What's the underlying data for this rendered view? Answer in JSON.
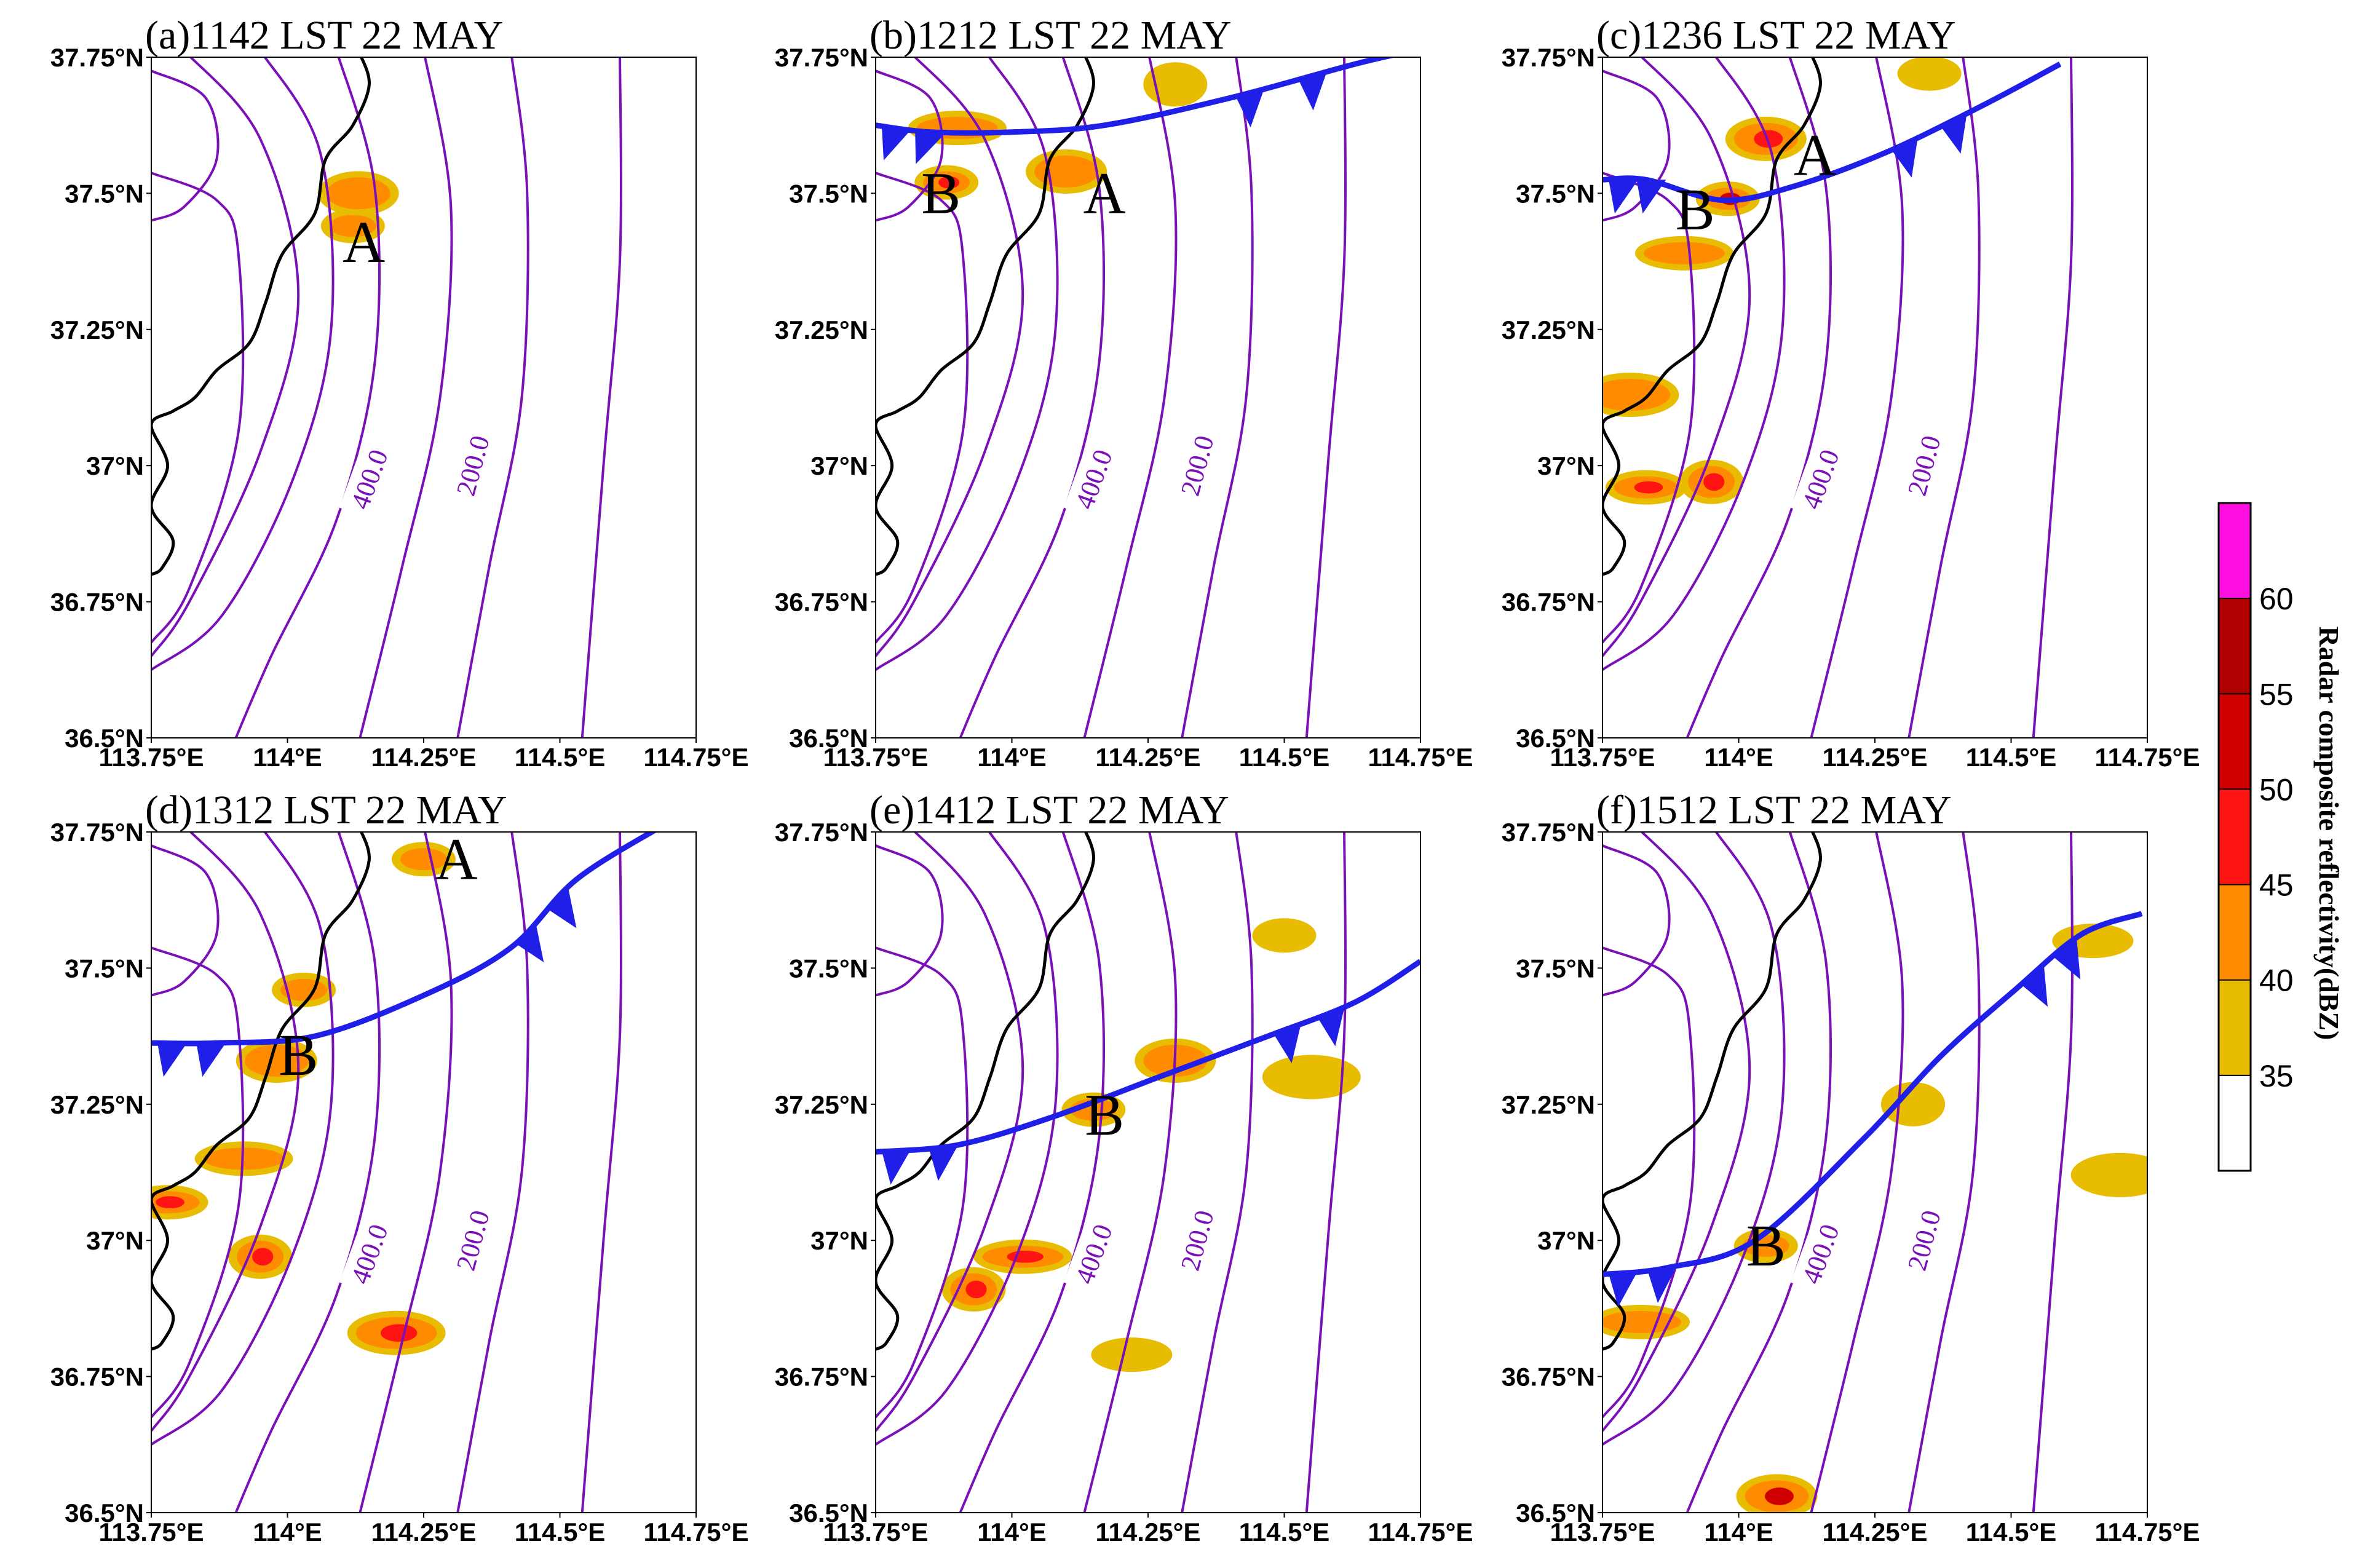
{
  "colors": {
    "contour": "#7a10b8",
    "front": "#1f1fe8",
    "coast": "#000000",
    "dbz_35_40": "#e8bc00",
    "dbz_40_45": "#ff8c00",
    "dbz_45_50": "#ff1414",
    "dbz_50_55": "#d00000",
    "dbz_55_60": "#b00000",
    "dbz_60_65": "#ff10e0"
  },
  "axes": {
    "x_ticks": [
      "113.75°E",
      "114°E",
      "114.25°E",
      "114.5°E",
      "114.75°E"
    ],
    "y_ticks": [
      "37.75°N",
      "37.5°N",
      "37.25°N",
      "37°N",
      "36.75°N",
      "36.5°N"
    ],
    "lon_range": [
      113.75,
      114.75
    ],
    "lat_range": [
      36.5,
      37.75
    ]
  },
  "contour_labels": [
    "400.0",
    "200.0"
  ],
  "panels": [
    {
      "title": "(a)1142 LST 22 MAY",
      "has_front": false,
      "cells": [
        {
          "label": "A",
          "lon": 114.14,
          "lat": 37.41
        }
      ],
      "echoes": [
        {
          "lon": 114.12,
          "lat": 37.44,
          "dbz": 42
        },
        {
          "lon": 114.13,
          "lat": 37.5,
          "dbz": 40
        }
      ]
    },
    {
      "title": "(b)1212 LST 22 MAY",
      "has_front": true,
      "cells": [
        {
          "label": "B",
          "lon": 113.87,
          "lat": 37.5
        },
        {
          "label": "A",
          "lon": 114.17,
          "lat": 37.5
        }
      ],
      "echoes": [
        {
          "lon": 113.88,
          "lat": 37.52,
          "dbz": 46
        },
        {
          "lon": 114.1,
          "lat": 37.54,
          "dbz": 42
        },
        {
          "lon": 113.9,
          "lat": 37.62,
          "dbz": 40
        },
        {
          "lon": 114.3,
          "lat": 37.7,
          "dbz": 38
        }
      ]
    },
    {
      "title": "(c)1236 LST 22 MAY",
      "has_front": true,
      "cells": [
        {
          "label": "B",
          "lon": 113.92,
          "lat": 37.47
        },
        {
          "label": "A",
          "lon": 114.14,
          "lat": 37.57
        }
      ],
      "echoes": [
        {
          "lon": 113.98,
          "lat": 37.49,
          "dbz": 50
        },
        {
          "lon": 114.05,
          "lat": 37.6,
          "dbz": 47
        },
        {
          "lon": 113.9,
          "lat": 37.39,
          "dbz": 44
        },
        {
          "lon": 113.95,
          "lat": 36.97,
          "dbz": 46
        },
        {
          "lon": 113.83,
          "lat": 36.96,
          "dbz": 45
        },
        {
          "lon": 113.8,
          "lat": 37.13,
          "dbz": 40
        },
        {
          "lon": 114.35,
          "lat": 37.72,
          "dbz": 38
        }
      ]
    },
    {
      "title": "(d)1312 LST 22 MAY",
      "has_front": true,
      "cells": [
        {
          "label": "A",
          "lon": 114.31,
          "lat": 37.7
        },
        {
          "label": "B",
          "lon": 114.02,
          "lat": 37.34
        }
      ],
      "echoes": [
        {
          "lon": 114.25,
          "lat": 37.7,
          "dbz": 42
        },
        {
          "lon": 113.98,
          "lat": 37.33,
          "dbz": 44
        },
        {
          "lon": 113.92,
          "lat": 37.15,
          "dbz": 40
        },
        {
          "lon": 113.95,
          "lat": 36.97,
          "dbz": 47
        },
        {
          "lon": 113.78,
          "lat": 37.07,
          "dbz": 46
        },
        {
          "lon": 114.2,
          "lat": 36.83,
          "dbz": 46
        },
        {
          "lon": 114.03,
          "lat": 37.46,
          "dbz": 40
        }
      ]
    },
    {
      "title": "(e)1412 LST 22 MAY",
      "has_front": true,
      "cells": [
        {
          "label": "B",
          "lon": 114.17,
          "lat": 37.23
        }
      ],
      "echoes": [
        {
          "lon": 114.15,
          "lat": 37.24,
          "dbz": 42
        },
        {
          "lon": 114.3,
          "lat": 37.33,
          "dbz": 40
        },
        {
          "lon": 114.02,
          "lat": 36.97,
          "dbz": 45
        },
        {
          "lon": 113.93,
          "lat": 36.91,
          "dbz": 46
        },
        {
          "lon": 114.22,
          "lat": 36.79,
          "dbz": 38
        },
        {
          "lon": 114.55,
          "lat": 37.3,
          "dbz": 38
        },
        {
          "lon": 114.5,
          "lat": 37.56,
          "dbz": 36
        }
      ]
    },
    {
      "title": "(f)1512 LST 22 MAY",
      "has_front": true,
      "cells": [
        {
          "label": "B",
          "lon": 114.05,
          "lat": 36.99
        }
      ],
      "echoes": [
        {
          "lon": 114.05,
          "lat": 36.99,
          "dbz": 40
        },
        {
          "lon": 114.07,
          "lat": 36.53,
          "dbz": 50
        },
        {
          "lon": 113.82,
          "lat": 36.85,
          "dbz": 42
        },
        {
          "lon": 114.32,
          "lat": 37.25,
          "dbz": 38
        },
        {
          "lon": 114.65,
          "lat": 37.55,
          "dbz": 38
        },
        {
          "lon": 114.7,
          "lat": 37.12,
          "dbz": 36
        }
      ]
    }
  ],
  "colorbar": {
    "title": "Radar composite reflectivity(dBZ)",
    "ticks": [
      "35",
      "40",
      "45",
      "50",
      "55",
      "60"
    ]
  }
}
